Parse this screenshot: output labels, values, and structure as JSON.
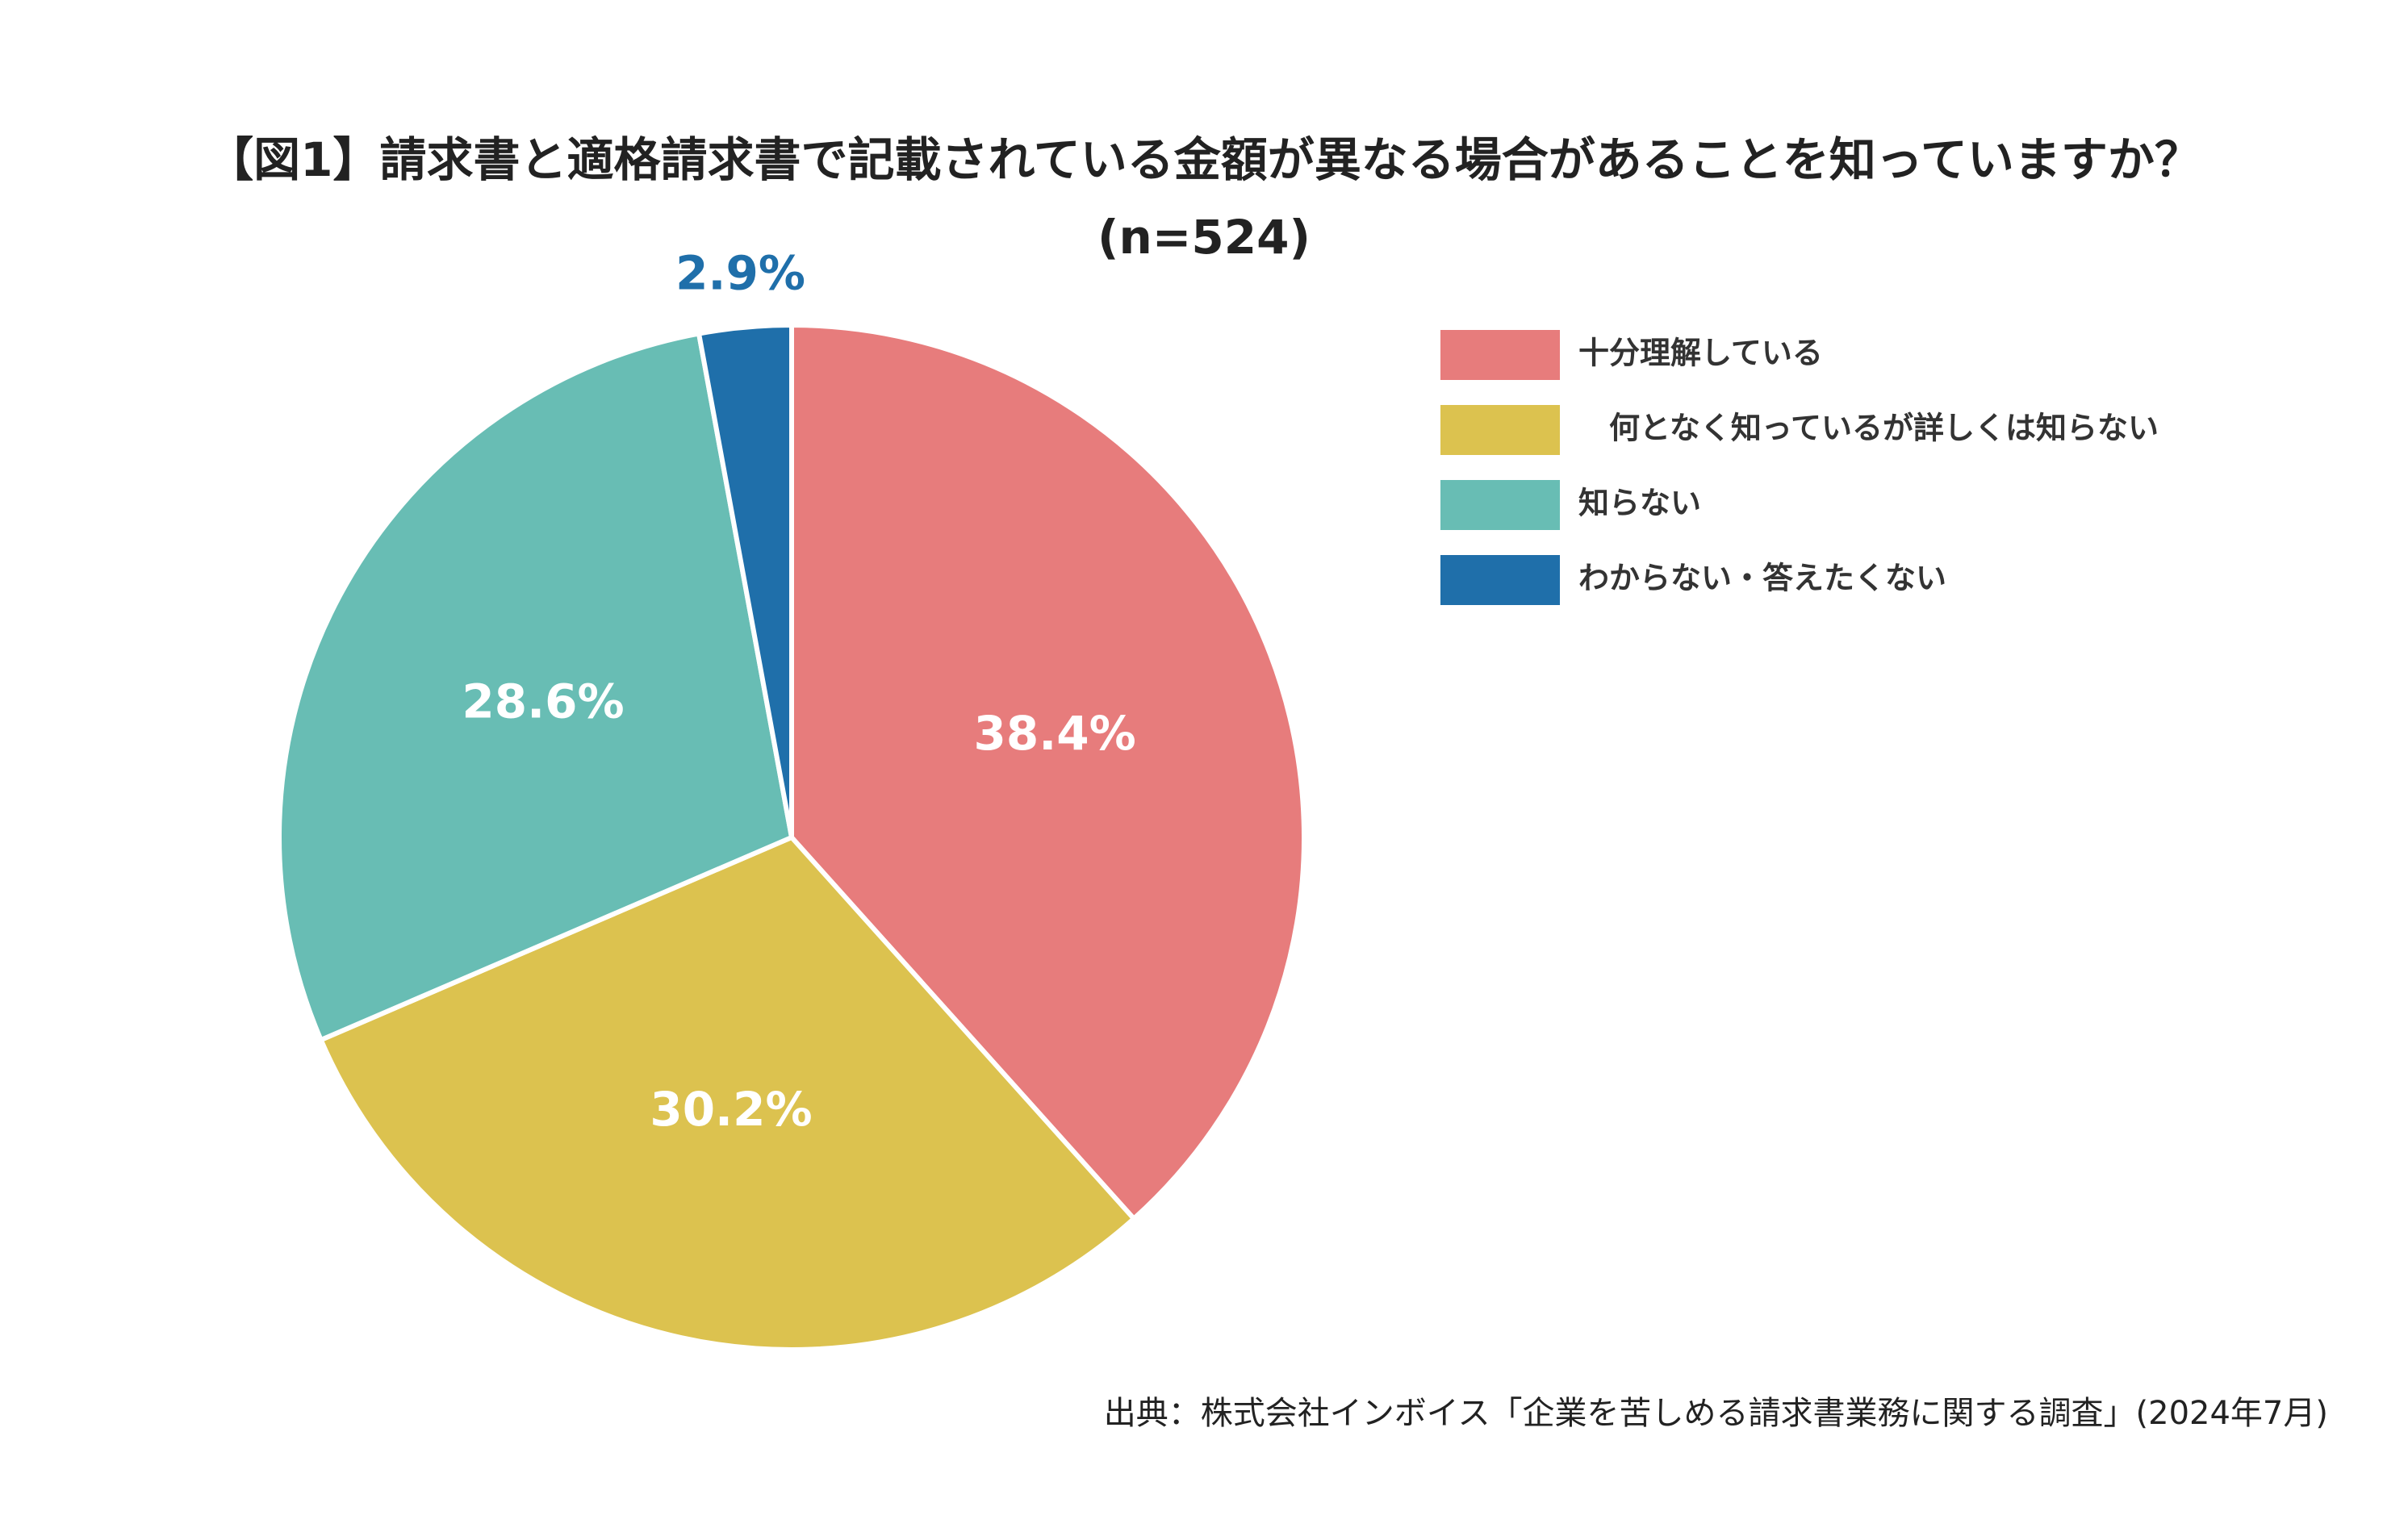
{
  "chart_data": {
    "type": "pie",
    "title": "【図1】請求書と適格請求書で記載されている金額が異なる場合があることを知っていますか？",
    "subtitle": "(n=524)",
    "categories": [
      "十分理解している",
      "　何となく知っているが詳しくは知らない",
      "知らない",
      "わからない・答えたくない"
    ],
    "values": [
      38.4,
      30.2,
      28.6,
      2.9
    ],
    "value_labels": [
      "38.4%",
      "30.2%",
      "28.6%",
      "2.9%"
    ],
    "colors": [
      "#e77c7c",
      "#dcc24f",
      "#68bdb4",
      "#1f6faa"
    ],
    "legend": "upper right",
    "source": "出典：株式会社インボイス「企業を苦しめる請求書業務に関する調査」(2024年7月)"
  }
}
